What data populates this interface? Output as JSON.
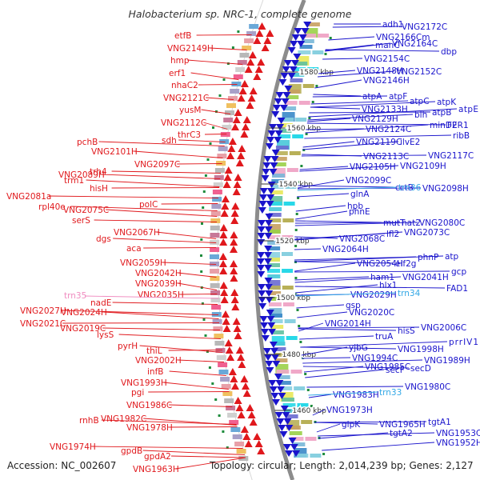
{
  "title": "Halobacterium sp. NRC-1, complete genome",
  "accession": "Accession: NC_002607",
  "summary": "Topology: circular; Length: 2,014,239 bp; Genes: 2,127",
  "colors": {
    "forward": "#e0181c",
    "reverse": "#1a14cc",
    "trna": "#33a8e6",
    "trna_left": "#f08cc0",
    "backbone": "#8c8c8c",
    "scale": "#333333",
    "dots": "#1e8c3c"
  },
  "scale_marks": [
    "1580 kbp",
    "1560 kbp",
    "1540 kbp",
    "1520 kbp",
    "1500 kbp",
    "1480 kbp",
    "1460 kbp"
  ],
  "left_labels": [
    "etfB",
    "VNG2149H",
    "hmp",
    "erf1",
    "nhaC2",
    "VNG2121C",
    "yusM",
    "VNG2112C",
    "thrC3",
    "sdh",
    "pchB",
    "VNG2101H",
    "VNG2097C",
    "trh4",
    "VNG2089H",
    "trm1",
    "hisH",
    "VNG2081a",
    "rpl40e",
    "VNG2075C",
    "polC",
    "serS",
    "dgs",
    "VNG2067H",
    "aca",
    "VNG2059H",
    "VNG2042H",
    "VNG2039H",
    "VNG2035H",
    "nadE",
    "VNG2027H",
    "VNG2024H",
    "VNG2021C",
    "VNG2019C",
    "lysS",
    "pyrH",
    "thiL",
    "VNG2002H",
    "infB",
    "VNG1993H",
    "pgi",
    "VNG1986C",
    "rnhB",
    "VNG1982C",
    "VNG1978H",
    "VNG1974H",
    "gpdB",
    "gpdA2",
    "VNG1963H"
  ],
  "left_trna": [
    "trn35"
  ],
  "right_labels": [
    "adh1",
    "VNG2172C",
    "VNG2166Cm",
    "manC",
    "VNG2164C",
    "dbp",
    "VNG2154C",
    "VNG2148H",
    "VNG2152C",
    "VNG2146H",
    "atpA",
    "atpF",
    "atpC",
    "atpK",
    "atpE",
    "VNG2133H",
    "atpB",
    "VNG2129H",
    "blh",
    "minD2",
    "FER1",
    "VNG2124C",
    "ribB",
    "VNG2119C",
    "ilvE2",
    "VNG2113C",
    "VNG2117C",
    "VNG2105H",
    "VNG2109H",
    "VNG2099C",
    "cctB",
    "VNG2098H",
    "glnA",
    "hpb",
    "phnE",
    "mutT",
    "hat2",
    "VNG2080C",
    "lfl2",
    "VNG2073C",
    "VNG2068C",
    "VNG2064H",
    "phnP",
    "atp",
    "VNG2054H",
    "eif2g",
    "gcp",
    "ham1",
    "VNG2041H",
    "hlx1",
    "FAD1",
    "VNG2029H",
    "gsp",
    "VNG2020C",
    "VNG2014H",
    "hisS",
    "VNG2006C",
    "truA",
    "prrIV1",
    "yjbG",
    "VNG1998H",
    "VNG1994C",
    "VNG1989H",
    "VNG1985C",
    "secF",
    "secD",
    "VNG1980C",
    "VNG1983H",
    "VNG1973H",
    "glpK",
    "VNG1965H",
    "tgtA1",
    "VNG1953C",
    "tgtA2",
    "VNG1952H"
  ],
  "right_trna": [
    "trn36",
    "trn34",
    "trn33"
  ]
}
